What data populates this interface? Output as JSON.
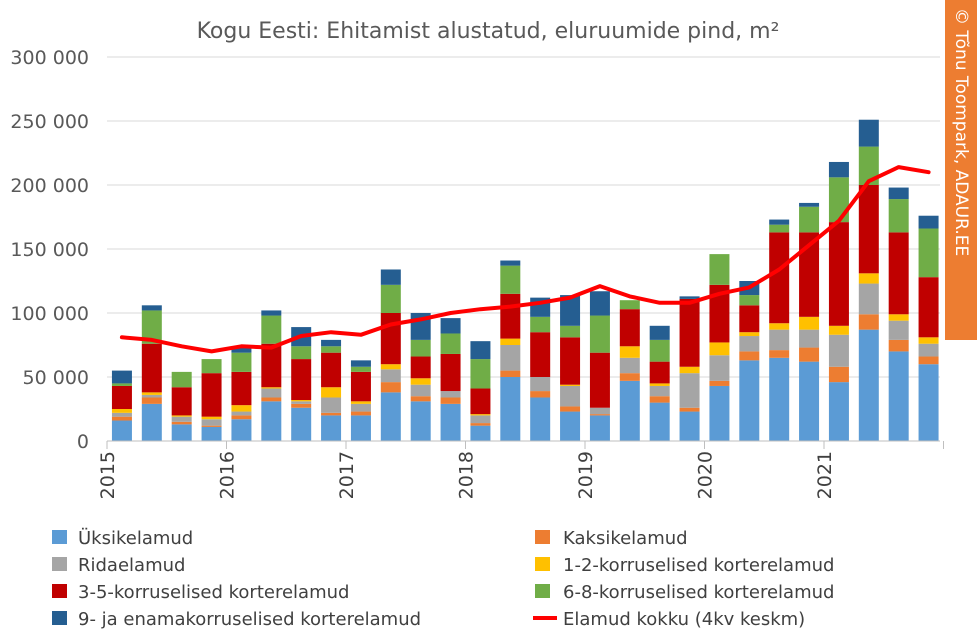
{
  "credit": "© Tõnu Toompark, ADAUR.EE",
  "chart_data": {
    "type": "bar",
    "stacked": true,
    "title": "Kogu Eesti: Ehitamist alustatud, eluruumide pind, m²",
    "xlabel": "",
    "ylabel": "",
    "ylim": [
      0,
      300000
    ],
    "yticks": [
      0,
      50000,
      100000,
      150000,
      200000,
      250000,
      300000
    ],
    "ytick_labels": [
      "0",
      "50 000",
      "100 000",
      "150 000",
      "200 000",
      "250 000",
      "300 000"
    ],
    "year_labels": [
      "2015",
      "2016",
      "2017",
      "2018",
      "2019",
      "2020",
      "2021"
    ],
    "grid": true,
    "legend_position": "bottom",
    "colors": [
      "#5b9bd5",
      "#ed7d31",
      "#a5a5a5",
      "#ffc000",
      "#c00000",
      "#70ad47",
      "#255e91",
      "#ff0000"
    ],
    "categories": [
      "2015 Q1",
      "2015 Q2",
      "2015 Q3",
      "2015 Q4",
      "2016 Q1",
      "2016 Q2",
      "2016 Q3",
      "2016 Q4",
      "2017 Q1",
      "2017 Q2",
      "2017 Q3",
      "2017 Q4",
      "2018 Q1",
      "2018 Q2",
      "2018 Q3",
      "2018 Q4",
      "2019 Q1",
      "2019 Q2",
      "2019 Q3",
      "2019 Q4",
      "2020 Q1",
      "2020 Q2",
      "2020 Q3",
      "2020 Q4",
      "2021 Q1",
      "2021 Q2",
      "2021 Q3",
      "2021 Q4"
    ],
    "series": [
      {
        "name": "Üksikelamud",
        "values": [
          16000,
          29000,
          13000,
          11000,
          17000,
          31000,
          26000,
          20000,
          20000,
          38000,
          31000,
          29000,
          12000,
          50000,
          34000,
          23000,
          20000,
          47000,
          30000,
          23000,
          43000,
          63000,
          65000,
          62000,
          46000,
          87000,
          70000,
          60000
        ]
      },
      {
        "name": "Kaksikelamud",
        "values": [
          3000,
          5000,
          2000,
          1000,
          3000,
          3000,
          3000,
          2000,
          3000,
          8000,
          4000,
          5000,
          2000,
          5000,
          5000,
          4000,
          1000,
          6000,
          5000,
          3000,
          4000,
          7000,
          6000,
          11000,
          12000,
          12000,
          9000,
          6000
        ]
      },
      {
        "name": "Ridaelamud",
        "values": [
          3000,
          2000,
          4000,
          5000,
          3000,
          7000,
          2000,
          12000,
          6000,
          10000,
          9000,
          5000,
          6000,
          20000,
          11000,
          16000,
          5000,
          12000,
          8000,
          27000,
          20000,
          12000,
          16000,
          14000,
          25000,
          24000,
          15000,
          10000
        ]
      },
      {
        "name": "1-2-korruselised korterelamud",
        "values": [
          3000,
          2000,
          1000,
          2000,
          5000,
          1000,
          1000,
          8000,
          2000,
          4000,
          5000,
          0,
          1000,
          5000,
          0,
          1000,
          0,
          9000,
          2000,
          5000,
          10000,
          3000,
          5000,
          10000,
          7000,
          8000,
          5000,
          5000
        ]
      },
      {
        "name": "3-5-korruselised korterelamud",
        "values": [
          18000,
          38000,
          22000,
          34000,
          26000,
          34000,
          32000,
          27000,
          23000,
          40000,
          17000,
          29000,
          20000,
          35000,
          35000,
          37000,
          43000,
          29000,
          17000,
          53000,
          45000,
          21000,
          71000,
          66000,
          81000,
          69000,
          64000,
          47000
        ]
      },
      {
        "name": "6-8-korruselised korterelamud",
        "values": [
          2000,
          26000,
          12000,
          11000,
          15000,
          22000,
          10000,
          5000,
          4000,
          22000,
          13000,
          16000,
          23000,
          22000,
          12000,
          9000,
          29000,
          7000,
          17000,
          0,
          24000,
          8000,
          6000,
          20000,
          35000,
          30000,
          26000,
          38000
        ]
      },
      {
        "name": "9- ja enamakorruselised korterelamud",
        "values": [
          10000,
          4000,
          0,
          0,
          4000,
          4000,
          15000,
          5000,
          5000,
          12000,
          21000,
          12000,
          14000,
          4000,
          15000,
          24000,
          19000,
          0,
          11000,
          2000,
          0,
          11000,
          4000,
          3000,
          12000,
          21000,
          9000,
          10000
        ]
      }
    ],
    "line_series": {
      "name": "Elamud kokku (4kv keskm)",
      "values": [
        81000,
        79000,
        74000,
        70000,
        74000,
        73000,
        82000,
        85000,
        83000,
        91000,
        95000,
        100000,
        103000,
        105000,
        108000,
        112000,
        121000,
        113000,
        108000,
        108000,
        115000,
        120000,
        134000,
        153000,
        172000,
        203000,
        214000,
        210000
      ]
    }
  }
}
